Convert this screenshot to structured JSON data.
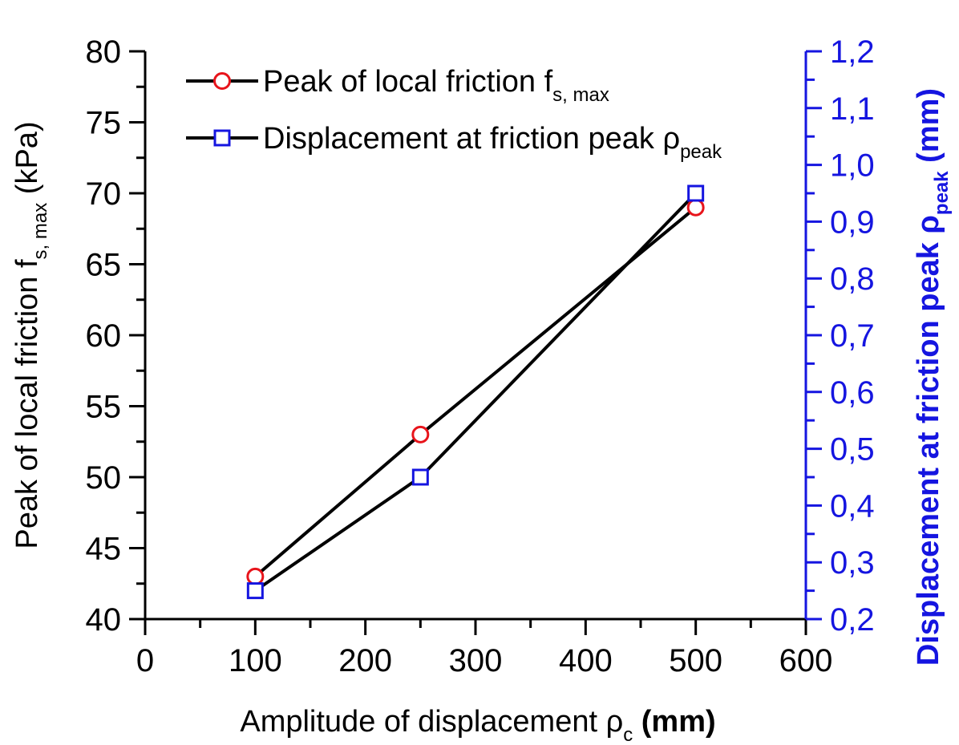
{
  "chart_data": {
    "type": "line",
    "x": [
      100,
      250,
      500
    ],
    "xlim": [
      0,
      600
    ],
    "x_ticks": [
      "0",
      "100",
      "200",
      "300",
      "400",
      "500",
      "600"
    ],
    "x_tick_values": [
      0,
      100,
      200,
      300,
      400,
      500,
      600
    ],
    "xlabel": {
      "main": "Amplitude of displacement ρ",
      "sub": "c",
      "unit": " (mm)"
    },
    "ylim_left": [
      40,
      80
    ],
    "y_left_ticks": [
      "40",
      "45",
      "50",
      "55",
      "60",
      "65",
      "70",
      "75",
      "80"
    ],
    "y_left_tick_values": [
      40,
      45,
      50,
      55,
      60,
      65,
      70,
      75,
      80
    ],
    "ylabel_left": {
      "main": "Peak of local friction f",
      "sub": "s, max",
      "unit": " (kPa)"
    },
    "ylim_right": [
      0.2,
      1.2
    ],
    "y_right_ticks": [
      "0,2",
      "0,3",
      "0,4",
      "0,5",
      "0,6",
      "0,7",
      "0,8",
      "0,9",
      "1,0",
      "1,1",
      "1,2"
    ],
    "y_right_tick_values": [
      0.2,
      0.3,
      0.4,
      0.5,
      0.6,
      0.7,
      0.8,
      0.9,
      1.0,
      1.1,
      1.2
    ],
    "ylabel_right": {
      "main": "Displacement at friction peak ρ",
      "sub": "peak",
      "unit": " (mm)"
    },
    "series": [
      {
        "name": "Peak of local friction f",
        "name_sub": "s, max",
        "axis": "left",
        "marker": "circle",
        "marker_color": "#e8141b",
        "line_color": "#000000",
        "values": [
          43,
          53,
          69
        ]
      },
      {
        "name": "Displacement at friction peak ρ",
        "name_sub": "peak",
        "axis": "right",
        "marker": "square",
        "marker_color": "#1515e0",
        "line_color": "#000000",
        "values": [
          0.25,
          0.45,
          0.95
        ]
      }
    ],
    "legend_position": "top-left",
    "grid": false,
    "colors": {
      "right_axis": "#1515e0",
      "axis": "#000000"
    }
  }
}
